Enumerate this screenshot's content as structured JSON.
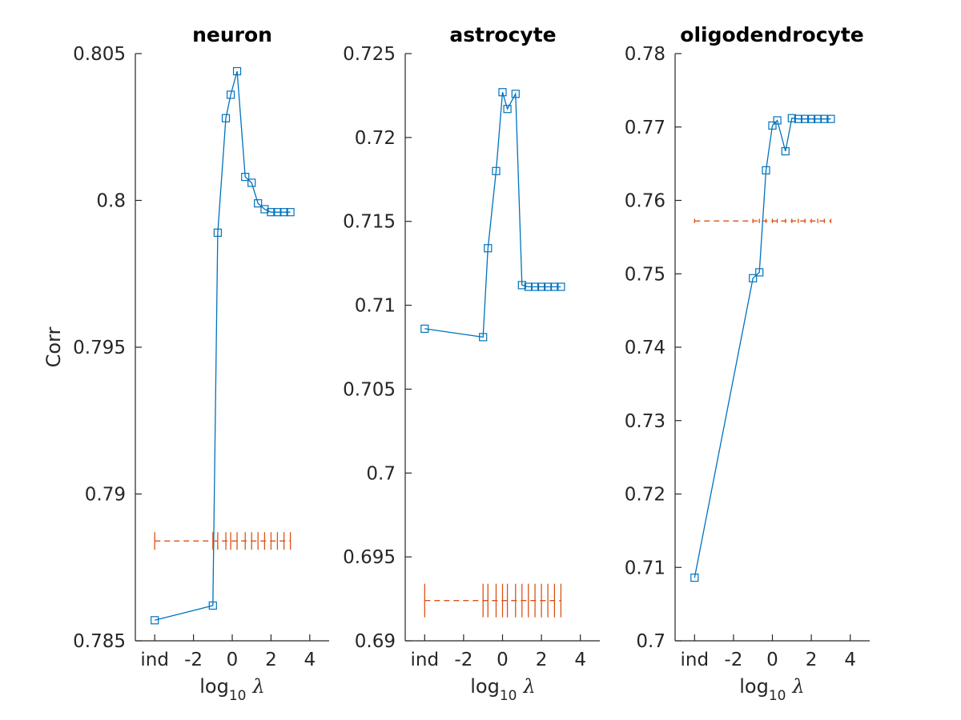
{
  "figure": {
    "ylabel": "Corr",
    "xlabel": {
      "base": "log",
      "sub": "10",
      "symbol": "λ"
    }
  },
  "colors": {
    "main_series": "#0072BD",
    "baseline_series": "#D95319",
    "axes": "#262626"
  },
  "chart_data": [
    {
      "type": "line",
      "title": "neuron",
      "ylim": [
        0.785,
        0.805
      ],
      "yticks": [
        "0.785",
        "0.79",
        "0.795",
        "0.8",
        "0.805"
      ],
      "xlim": [
        -5,
        5
      ],
      "xticks": [
        {
          "value": -4,
          "label": "ind"
        },
        {
          "value": -2,
          "label": "-2"
        },
        {
          "value": 0,
          "label": "0"
        },
        {
          "value": 2,
          "label": "2"
        },
        {
          "value": 4,
          "label": "4"
        }
      ],
      "series": [
        {
          "style": "solid-square-markers",
          "x": [
            -4,
            -1,
            -0.75,
            -0.33,
            -0.08,
            0.25,
            0.67,
            1,
            1.33,
            1.67,
            2,
            2.33,
            2.67,
            3
          ],
          "y": [
            0.7857,
            0.7862,
            0.7989,
            0.8028,
            0.8036,
            0.8044,
            0.8008,
            0.8006,
            0.7999,
            0.7997,
            0.7996,
            0.7996,
            0.7996,
            0.7996
          ]
        },
        {
          "style": "dashed-errorbar",
          "x": [
            -4,
            -1,
            -0.75,
            -0.33,
            -0.08,
            0.25,
            0.67,
            1,
            1.33,
            1.67,
            2,
            2.33,
            2.67,
            3
          ],
          "y": [
            0.7884,
            0.7884,
            0.7884,
            0.7884,
            0.7884,
            0.7884,
            0.7884,
            0.7884,
            0.7884,
            0.7884,
            0.7884,
            0.7884,
            0.7884,
            0.7884
          ],
          "err": 0.0003
        }
      ]
    },
    {
      "type": "line",
      "title": "astrocyte",
      "ylim": [
        0.69,
        0.725
      ],
      "yticks": [
        "0.69",
        "0.695",
        "0.7",
        "0.705",
        "0.71",
        "0.715",
        "0.72",
        "0.725"
      ],
      "xlim": [
        -5,
        5
      ],
      "xticks": [
        {
          "value": -4,
          "label": "ind"
        },
        {
          "value": -2,
          "label": "-2"
        },
        {
          "value": 0,
          "label": "0"
        },
        {
          "value": 2,
          "label": "2"
        },
        {
          "value": 4,
          "label": "4"
        }
      ],
      "series": [
        {
          "style": "solid-square-markers",
          "x": [
            -4,
            -1,
            -0.75,
            -0.33,
            0,
            0.25,
            0.67,
            1,
            1.33,
            1.67,
            2,
            2.33,
            2.67,
            3
          ],
          "y": [
            0.7086,
            0.7081,
            0.7134,
            0.718,
            0.7227,
            0.7217,
            0.7226,
            0.7112,
            0.7111,
            0.7111,
            0.7111,
            0.7111,
            0.7111,
            0.7111
          ]
        },
        {
          "style": "dashed-errorbar",
          "x": [
            -4,
            -1,
            -0.75,
            -0.33,
            0,
            0.25,
            0.67,
            1,
            1.33,
            1.67,
            2,
            2.33,
            2.67,
            3
          ],
          "y": [
            0.6924,
            0.6924,
            0.6924,
            0.6924,
            0.6924,
            0.6924,
            0.6924,
            0.6924,
            0.6924,
            0.6924,
            0.6924,
            0.6924,
            0.6924,
            0.6924
          ],
          "err": 0.001
        }
      ]
    },
    {
      "type": "line",
      "title": "oligodendrocyte",
      "ylim": [
        0.7,
        0.78
      ],
      "yticks": [
        "0.7",
        "0.71",
        "0.72",
        "0.73",
        "0.74",
        "0.75",
        "0.76",
        "0.77",
        "0.78"
      ],
      "xlim": [
        -5,
        5
      ],
      "xticks": [
        {
          "value": -4,
          "label": "ind"
        },
        {
          "value": -2,
          "label": "-2"
        },
        {
          "value": 0,
          "label": "0"
        },
        {
          "value": 2,
          "label": "2"
        },
        {
          "value": 4,
          "label": "4"
        }
      ],
      "series": [
        {
          "style": "solid-square-markers",
          "x": [
            -4,
            -1,
            -0.67,
            -0.33,
            0,
            0.25,
            0.67,
            1,
            1.33,
            1.67,
            2,
            2.33,
            2.67,
            3
          ],
          "y": [
            0.7086,
            0.7494,
            0.7502,
            0.7641,
            0.7702,
            0.7709,
            0.7667,
            0.7712,
            0.7711,
            0.7711,
            0.7711,
            0.7711,
            0.7711,
            0.7711
          ]
        },
        {
          "style": "dashed-errorbar",
          "x": [
            -4,
            -1,
            -0.67,
            -0.33,
            0,
            0.25,
            0.67,
            1,
            1.33,
            1.67,
            2,
            2.33,
            2.67,
            3
          ],
          "y": [
            0.7572,
            0.7572,
            0.7572,
            0.7572,
            0.7572,
            0.7572,
            0.7572,
            0.7572,
            0.7572,
            0.7572,
            0.7572,
            0.7572,
            0.7572,
            0.7572
          ],
          "err": 0.0003
        }
      ]
    }
  ]
}
